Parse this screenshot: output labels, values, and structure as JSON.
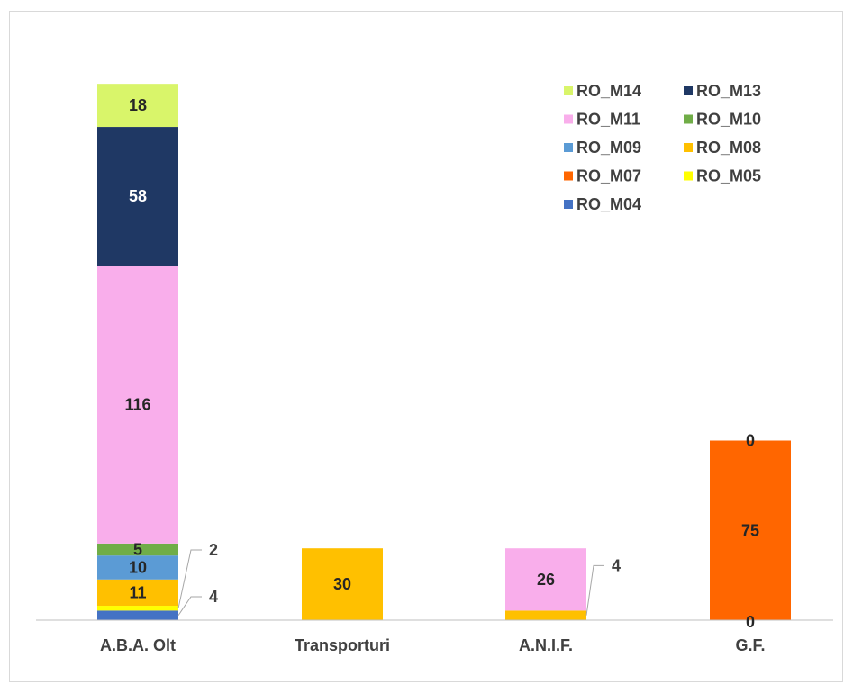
{
  "chart_data": {
    "type": "bar",
    "stacked": true,
    "categories": [
      "A.B.A. Olt",
      "Transporturi",
      "A.N.I.F.",
      "G.F."
    ],
    "series": [
      {
        "name": "RO_M04",
        "color": "#4472c4",
        "values": [
          4,
          0,
          0,
          0
        ]
      },
      {
        "name": "RO_M05",
        "color": "#ffff00",
        "values": [
          2,
          0,
          0,
          0
        ]
      },
      {
        "name": "RO_M07",
        "color": "#ff6600",
        "values": [
          0,
          0,
          0,
          75
        ]
      },
      {
        "name": "RO_M08",
        "color": "#ffc000",
        "values": [
          11,
          30,
          4,
          0
        ]
      },
      {
        "name": "RO_M09",
        "color": "#5b9bd5",
        "values": [
          10,
          0,
          0,
          0
        ]
      },
      {
        "name": "RO_M10",
        "color": "#70ad47",
        "values": [
          5,
          0,
          0,
          0
        ]
      },
      {
        "name": "RO_M11",
        "color": "#f9aeeb",
        "values": [
          116,
          0,
          26,
          0
        ]
      },
      {
        "name": "RO_M13",
        "color": "#1f3864",
        "values": [
          58,
          0,
          0,
          0
        ]
      },
      {
        "name": "RO_M14",
        "color": "#d9f56a",
        "values": [
          18,
          0,
          0,
          0
        ]
      }
    ],
    "legend_order": [
      "RO_M14",
      "RO_M13",
      "RO_M11",
      "RO_M10",
      "RO_M09",
      "RO_M08",
      "RO_M07",
      "RO_M05",
      "RO_M04"
    ],
    "data_labels": [
      {
        "category": "A.B.A. Olt",
        "series": "RO_M04",
        "text": "4",
        "callout": true
      },
      {
        "category": "A.B.A. Olt",
        "series": "RO_M05",
        "text": "2",
        "callout": true
      },
      {
        "category": "A.B.A. Olt",
        "series": "RO_M08",
        "text": "11"
      },
      {
        "category": "A.B.A. Olt",
        "series": "RO_M09",
        "text": "10"
      },
      {
        "category": "A.B.A. Olt",
        "series": "RO_M10",
        "text": "5"
      },
      {
        "category": "A.B.A. Olt",
        "series": "RO_M11",
        "text": "116"
      },
      {
        "category": "A.B.A. Olt",
        "series": "RO_M13",
        "text": "58",
        "color": "#ffffff"
      },
      {
        "category": "A.B.A. Olt",
        "series": "RO_M14",
        "text": "18"
      },
      {
        "category": "Transporturi",
        "series": "RO_M08",
        "text": "30"
      },
      {
        "category": "A.N.I.F.",
        "series": "RO_M08",
        "text": "4",
        "callout": true
      },
      {
        "category": "A.N.I.F.",
        "series": "RO_M11",
        "text": "26"
      },
      {
        "category": "G.F.",
        "series": "RO_M07",
        "text": "75"
      },
      {
        "category": "G.F.",
        "series": "RO_M07",
        "text": "0",
        "place": "top"
      },
      {
        "category": "G.F.",
        "series": "RO_M07",
        "text": "0",
        "place": "base"
      }
    ],
    "ylim": [
      0,
      230
    ],
    "legend_position": "top-right",
    "grid": false,
    "title": "",
    "xlabel": "",
    "ylabel": ""
  }
}
